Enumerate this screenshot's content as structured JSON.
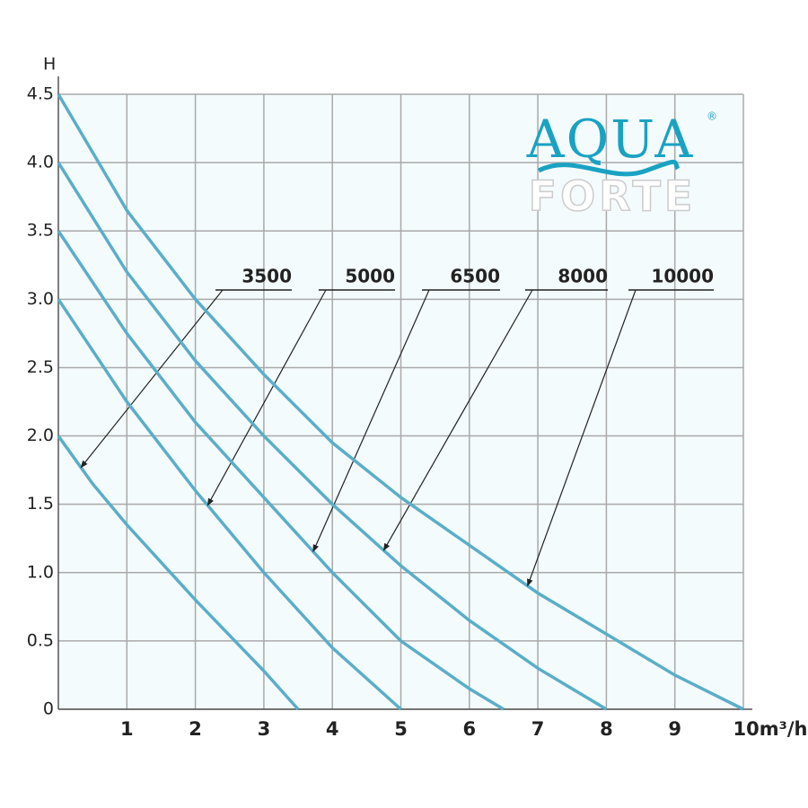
{
  "chart_data": {
    "type": "line",
    "y_label": "H",
    "brand": [
      "AQUA",
      "FORTE"
    ],
    "brand_mark": "®",
    "xlim": [
      0,
      10
    ],
    "ylim": [
      0,
      4.5
    ],
    "xticks": [
      1,
      2,
      3,
      4,
      5,
      6,
      7,
      8,
      9,
      {
        "value": 10,
        "label": "10m³/h"
      }
    ],
    "yticks": [
      0,
      0.5,
      {
        "value": 1,
        "label": "1.0"
      },
      1.5,
      {
        "value": 2,
        "label": "2.0"
      },
      2.5,
      {
        "value": 3,
        "label": "3.0"
      },
      3.5,
      {
        "value": 4,
        "label": "4.0"
      },
      4.5
    ],
    "grid": true,
    "series": [
      {
        "name": "3500",
        "color": "#5aaec8",
        "x": [
          0,
          0.5,
          1,
          2,
          3,
          3.5
        ],
        "values": [
          2.0,
          1.65,
          1.35,
          0.8,
          0.28,
          0
        ]
      },
      {
        "name": "5000",
        "color": "#5aaec8",
        "x": [
          0,
          1,
          2,
          3,
          4,
          5
        ],
        "values": [
          3.0,
          2.25,
          1.6,
          1.0,
          0.45,
          0
        ]
      },
      {
        "name": "6500",
        "color": "#5aaec8",
        "x": [
          0,
          1,
          2,
          3,
          4,
          5,
          6,
          6.5
        ],
        "values": [
          3.5,
          2.75,
          2.1,
          1.55,
          1.0,
          0.5,
          0.15,
          0
        ]
      },
      {
        "name": "8000",
        "color": "#5aaec8",
        "x": [
          0,
          1,
          2,
          3,
          4,
          5,
          6,
          7,
          8
        ],
        "values": [
          4.0,
          3.2,
          2.55,
          2.0,
          1.5,
          1.05,
          0.65,
          0.3,
          0
        ]
      },
      {
        "name": "10000",
        "color": "#5aaec8",
        "x": [
          0,
          1,
          2,
          3,
          4,
          5,
          6,
          7,
          8,
          9,
          10
        ],
        "values": [
          4.5,
          3.65,
          3.0,
          2.45,
          1.95,
          1.55,
          1.2,
          0.85,
          0.55,
          0.25,
          0
        ]
      }
    ]
  }
}
